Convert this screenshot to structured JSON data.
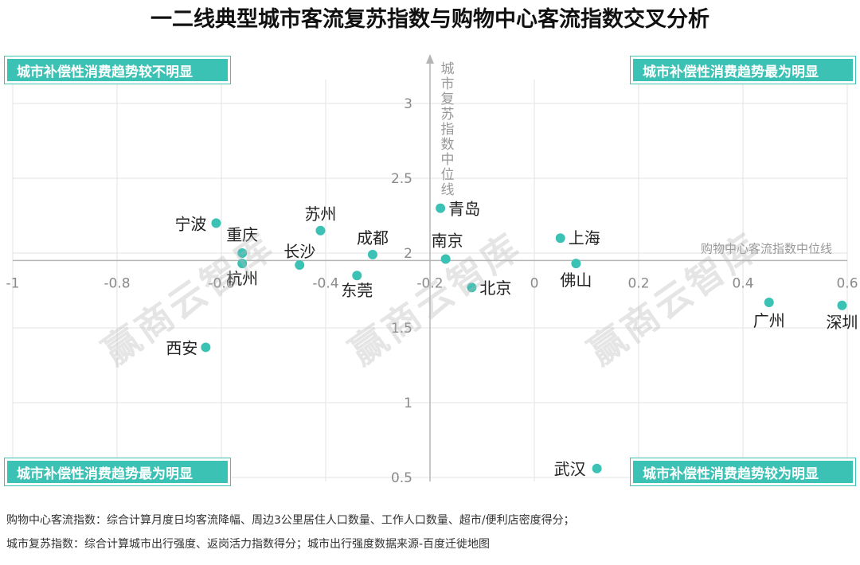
{
  "title": "一二线典型城市客流复苏指数与购物中心客流指数交叉分析",
  "quadrants": {
    "top_left": "城市补偿性消费趋势较不明显",
    "top_right": "城市补偿性消费趋势最为明显",
    "bottom_left": "城市补偿性消费趋势最为明显",
    "bottom_right": "城市补偿性消费趋势较为明显"
  },
  "notes": {
    "line1": "购物中心客流指数：综合计算月度日均客流降幅、周边3公里居住人口数量、工作人口数量、超市/便利店密度得分；",
    "line2": "城市复苏指数：综合计算城市出行强度、返岗活力指数得分；城市出行强度数据来源-百度迁徙地图"
  },
  "watermark": "赢商云智库",
  "chart_data": {
    "type": "scatter",
    "title": "一二线典型城市客流复苏指数与购物中心客流指数交叉分析",
    "xlabel": "购物中心客流指数中位线",
    "ylabel": "城市复苏指数中位线",
    "xlim": [
      -1,
      0.6
    ],
    "ylim": [
      0.5,
      3.2
    ],
    "x_ticks": [
      -1,
      -0.8,
      -0.6,
      -0.4,
      -0.2,
      0,
      0.2,
      0.4,
      0.6
    ],
    "x_tick_labels": [
      "-1",
      "-0.8",
      "-0.6",
      "-0.4",
      "-0.2",
      "0",
      "0.2",
      "0.4",
      "0.6"
    ],
    "y_ticks": [
      0.5,
      1,
      1.5,
      2,
      2.5,
      3
    ],
    "y_tick_labels": [
      "0.5",
      "1",
      "1.5",
      "2",
      "2.5",
      "3"
    ],
    "x_median": -0.2,
    "y_median": 1.95,
    "grid": true,
    "color": "#3cc2b4",
    "points": [
      {
        "name": "宁波",
        "x": -0.61,
        "y": 2.2
      },
      {
        "name": "苏州",
        "x": -0.41,
        "y": 2.15
      },
      {
        "name": "青岛",
        "x": -0.18,
        "y": 2.3
      },
      {
        "name": "重庆",
        "x": -0.56,
        "y": 2.0
      },
      {
        "name": "杭州",
        "x": -0.56,
        "y": 1.93
      },
      {
        "name": "长沙",
        "x": -0.45,
        "y": 1.92
      },
      {
        "name": "成都",
        "x": -0.31,
        "y": 1.99
      },
      {
        "name": "南京",
        "x": -0.17,
        "y": 1.96
      },
      {
        "name": "上海",
        "x": 0.05,
        "y": 2.1
      },
      {
        "name": "佛山",
        "x": 0.08,
        "y": 1.93
      },
      {
        "name": "东莞",
        "x": -0.34,
        "y": 1.85
      },
      {
        "name": "北京",
        "x": -0.12,
        "y": 1.77
      },
      {
        "name": "西安",
        "x": -0.63,
        "y": 1.37
      },
      {
        "name": "广州",
        "x": 0.45,
        "y": 1.67
      },
      {
        "name": "深圳",
        "x": 0.59,
        "y": 1.65
      },
      {
        "name": "武汉",
        "x": 0.12,
        "y": 0.56
      }
    ]
  }
}
